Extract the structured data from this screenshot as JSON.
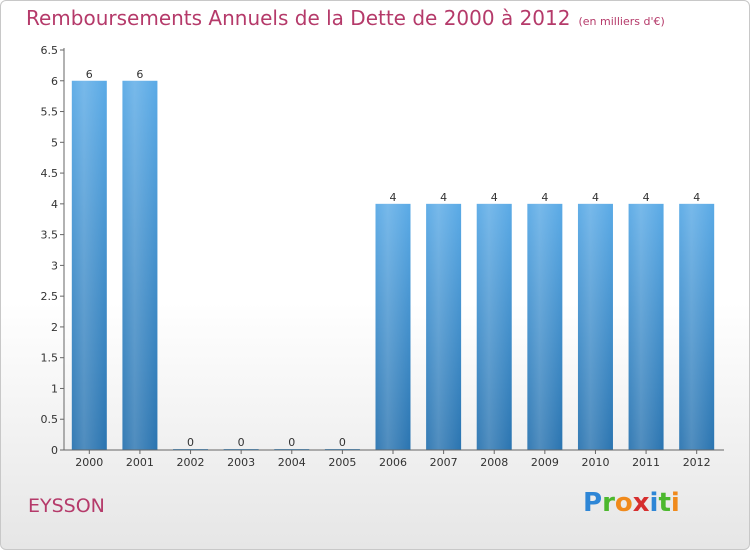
{
  "title": "Remboursements Annuels de la Dette de 2000 à 2012",
  "unit": "(en milliers d'€)",
  "city": "EYSSON",
  "logo": {
    "letters": [
      "P",
      "r",
      "o",
      "x",
      "i",
      "t",
      "i"
    ],
    "colors": [
      "#2e86d6",
      "#4cb82e",
      "#f08a1c",
      "#d62e2e",
      "#2e86d6",
      "#4cb82e",
      "#f08a1c"
    ]
  },
  "colors": {
    "bar_top": "#5aaae6",
    "bar_bottom": "#2a74b0",
    "title": "#b53a6a"
  },
  "chart_data": {
    "type": "bar",
    "categories": [
      "2000",
      "2001",
      "2002",
      "2003",
      "2004",
      "2005",
      "2006",
      "2007",
      "2008",
      "2009",
      "2010",
      "2011",
      "2012"
    ],
    "values": [
      6,
      6,
      0,
      0,
      0,
      0,
      4,
      4,
      4,
      4,
      4,
      4,
      4
    ],
    "data_labels": [
      "6",
      "6",
      "0",
      "0",
      "0",
      "0",
      "4",
      "4",
      "4",
      "4",
      "4",
      "4",
      "4"
    ],
    "yticks": [
      "0",
      "0.5",
      "1",
      "1.5",
      "2",
      "2.5",
      "3",
      "3.5",
      "4",
      "4.5",
      "5",
      "5.5",
      "6",
      "6.5"
    ],
    "ylim": [
      0,
      6.5
    ],
    "grid": false
  }
}
